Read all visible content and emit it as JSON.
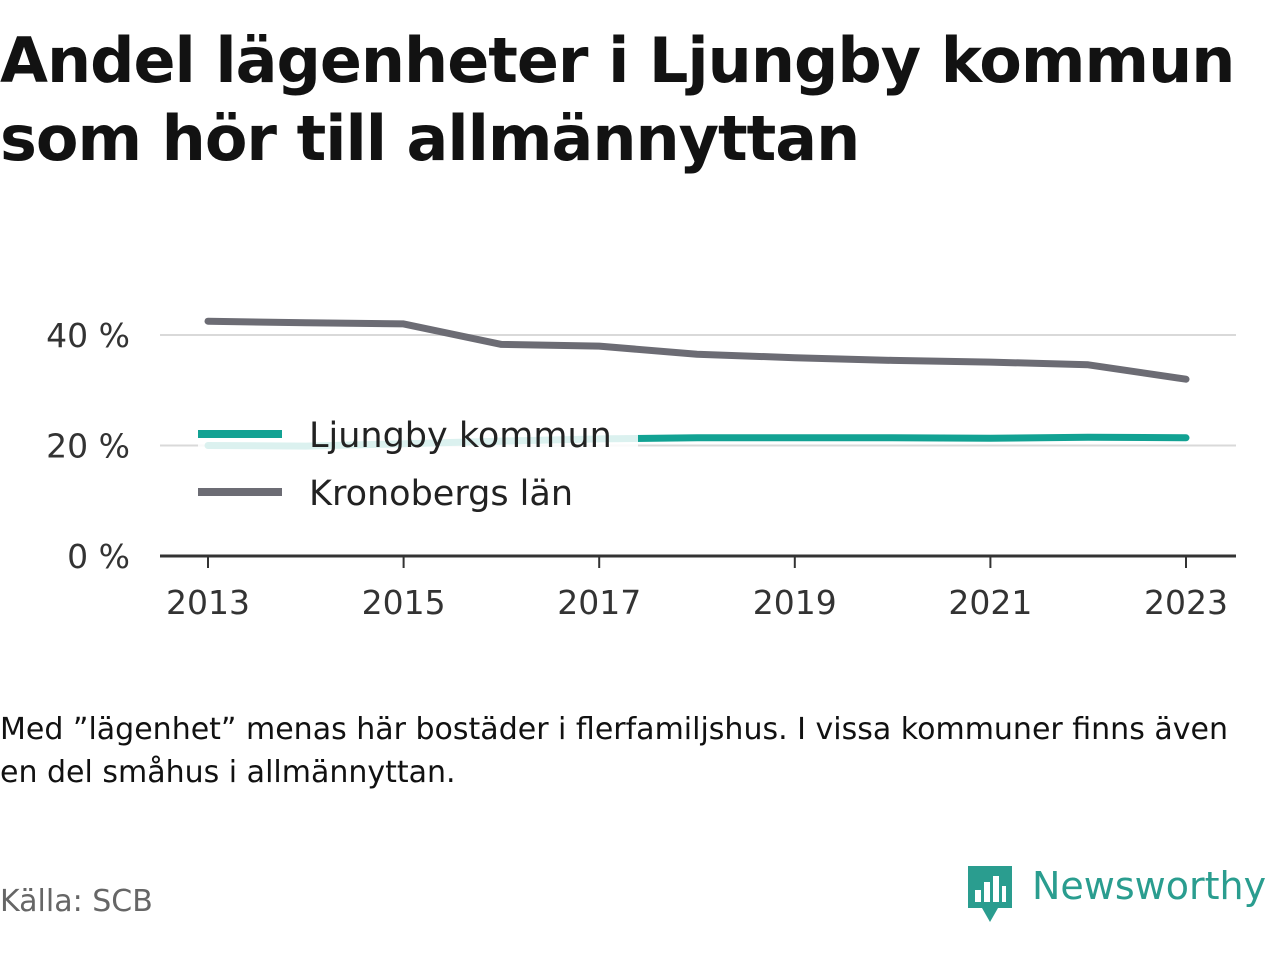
{
  "title": "Andel lägenheter i Ljungby kommun som hör till allmännyttan",
  "note": "Med ”lägenhet” menas här bostäder i flerfamiljshus. I vissa kommuner finns även en del småhus i allmännyttan.",
  "source": "Källa: SCB",
  "brand": {
    "name": "Newsworthy",
    "icon": "newsworthy-logo-icon"
  },
  "colors": {
    "ljungby": "#12a293",
    "kronoberg": "#6c6c74",
    "grid": "#d9d9d9",
    "axis": "#333333",
    "brand": "#2a9d8f"
  },
  "chart_data": {
    "type": "line",
    "x": [
      2013,
      2014,
      2015,
      2016,
      2017,
      2018,
      2019,
      2020,
      2021,
      2022,
      2023
    ],
    "x_ticks": [
      "2013",
      "2015",
      "2017",
      "2019",
      "2021",
      "2023"
    ],
    "y_ticks": [
      "0 %",
      "20 %",
      "40 %"
    ],
    "ylim": [
      0,
      45
    ],
    "grid": true,
    "legend_placement": "center-left",
    "series": [
      {
        "name": "Ljungby kommun",
        "values": [
          20.0,
          19.9,
          20.3,
          20.8,
          21.2,
          21.4,
          21.4,
          21.4,
          21.3,
          21.5,
          21.4
        ]
      },
      {
        "name": "Kronobergs län",
        "values": [
          42.5,
          42.2,
          42.0,
          38.3,
          38.0,
          36.5,
          35.9,
          35.4,
          35.1,
          34.6,
          32.0
        ]
      }
    ]
  }
}
